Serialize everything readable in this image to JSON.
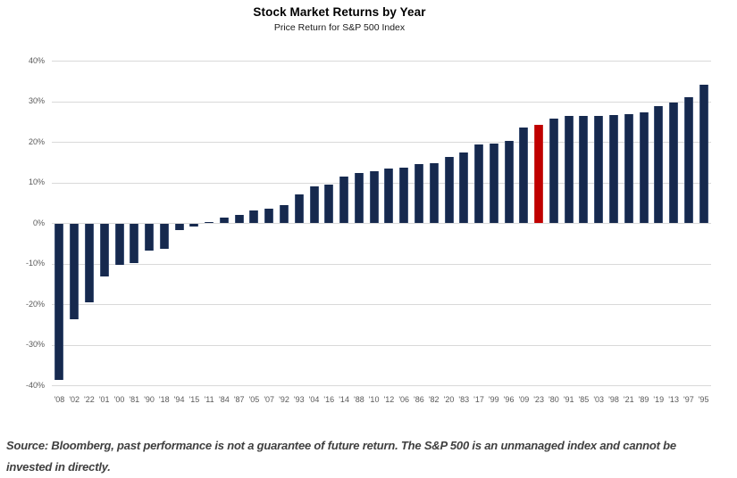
{
  "header": {
    "title": "Stock Market Returns by Year",
    "subtitle": "Price Return for S&P 500 Index"
  },
  "footer": {
    "source": "Source: Bloomberg, past performance is not a guarantee of future return. The S&P 500 is an unmanaged index and cannot be invested in directly."
  },
  "chart_data": {
    "type": "bar",
    "title": "Stock Market Returns by Year",
    "subtitle": "Price Return for S&P 500 Index",
    "xlabel": "",
    "ylabel": "",
    "ylim": [
      -40,
      40
    ],
    "grid": true,
    "legend": "none",
    "sort_order": "ascending-by-return",
    "categories": [
      "'08",
      "'02",
      "'22",
      "'01",
      "'00",
      "'81",
      "'90",
      "'18",
      "'94",
      "'15",
      "'11",
      "'84",
      "'87",
      "'05",
      "'07",
      "'92",
      "'93",
      "'04",
      "'16",
      "'14",
      "'88",
      "'10",
      "'12",
      "'06",
      "'86",
      "'82",
      "'20",
      "'83",
      "'17",
      "'99",
      "'96",
      "'09",
      "'23",
      "'80",
      "'91",
      "'85",
      "'03",
      "'98",
      "'21",
      "'89",
      "'19",
      "'13",
      "'97",
      "'95"
    ],
    "values": [
      -38.5,
      -23.4,
      -19.4,
      -13.0,
      -10.1,
      -9.7,
      -6.6,
      -6.2,
      -1.5,
      -0.7,
      0.0,
      1.4,
      2.0,
      3.0,
      3.5,
      4.5,
      7.1,
      9.0,
      9.5,
      11.4,
      12.4,
      12.8,
      13.4,
      13.6,
      14.6,
      14.8,
      16.3,
      17.3,
      19.4,
      19.5,
      20.3,
      23.5,
      24.2,
      25.8,
      26.3,
      26.3,
      26.4,
      26.7,
      26.9,
      27.3,
      28.9,
      29.6,
      31.0,
      34.1
    ],
    "highlight_category": "'23",
    "ytick_values": [
      40,
      30,
      20,
      10,
      0,
      -10,
      -20,
      -30,
      -40
    ],
    "ytick_labels": [
      "40%",
      "30%",
      "20%",
      "10%",
      "0%",
      "-10%",
      "-20%",
      "-30%",
      "-40%"
    ]
  },
  "colors": {
    "bar": "#16294E",
    "bar_edge": "#8EA3C4",
    "highlight": "#C00000",
    "highlight_edge": "#D98880",
    "gridline": "#D9D9D9",
    "axis_text": "#595959",
    "title_text": "#000000",
    "source_text": "#3F3F3F",
    "background": "#FFFFFF"
  }
}
